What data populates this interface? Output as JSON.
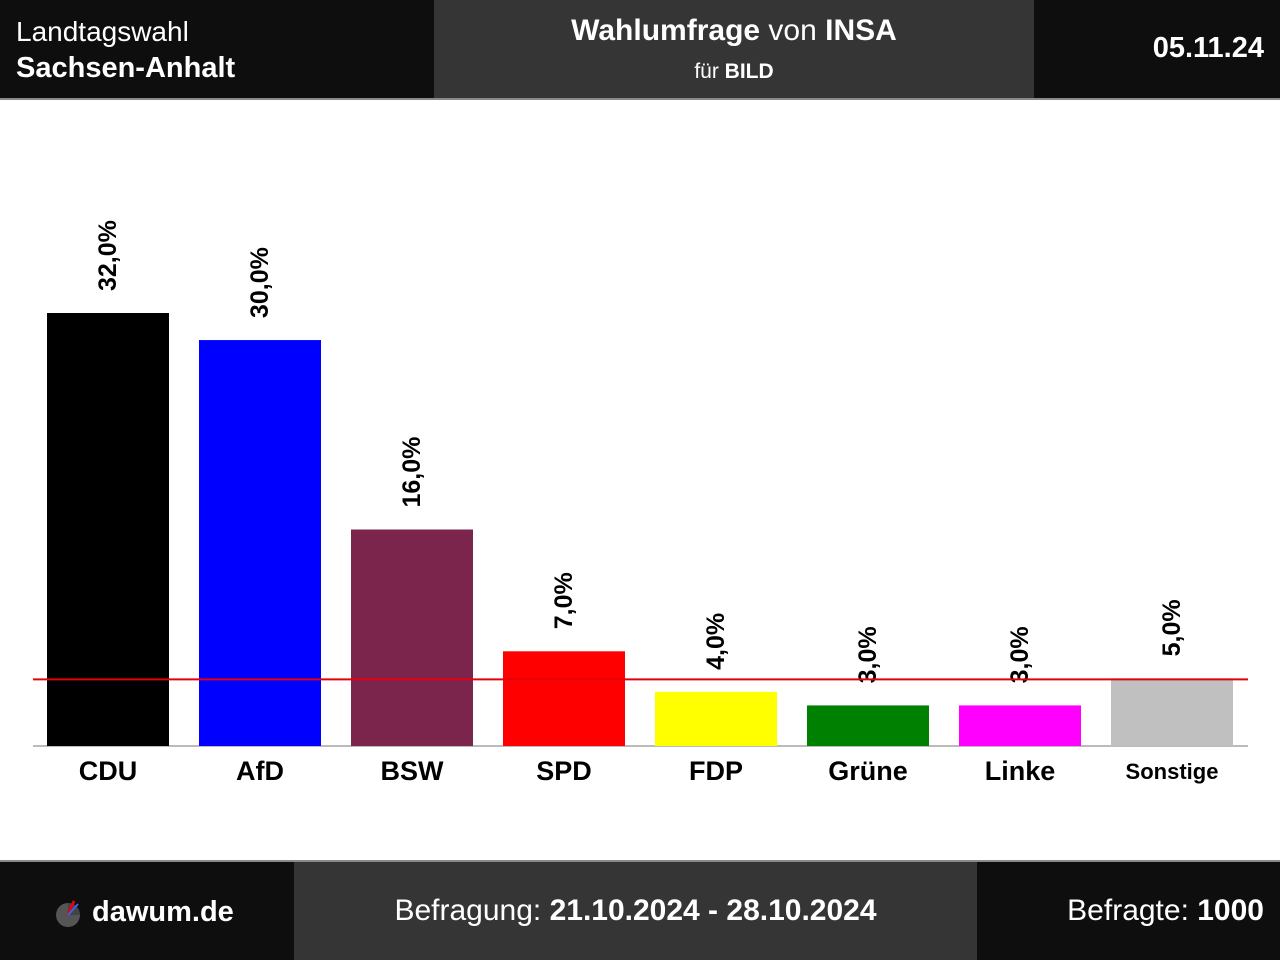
{
  "header": {
    "election_line1": "Landtagswahl",
    "election_line2": "Sachsen-Anhalt",
    "title_strong": "Wahlumfrage",
    "title_von": " von ",
    "title_institute": "INSA",
    "subtitle_fuer": "für ",
    "subtitle_client": "BILD",
    "date": "05.11.24"
  },
  "footer": {
    "brand": "dawum.de",
    "survey_label": "Befragung: ",
    "survey_period": "21.10.2024 - 28.10.2024",
    "respondents_label": "Befragte: ",
    "respondents_value": "1000"
  },
  "chart_data": {
    "type": "bar",
    "categories": [
      "CDU",
      "AfD",
      "BSW",
      "SPD",
      "FDP",
      "Grüne",
      "Linke",
      "Sonstige"
    ],
    "values": [
      32.0,
      30.0,
      16.0,
      7.0,
      4.0,
      3.0,
      3.0,
      5.0
    ],
    "value_labels": [
      "32,0%",
      "30,0%",
      "16,0%",
      "7,0%",
      "4,0%",
      "3,0%",
      "3,0%",
      "5,0%"
    ],
    "colors": [
      "#000000",
      "#0000ff",
      "#7b254c",
      "#ff0000",
      "#ffff00",
      "#008000",
      "#ff00ff",
      "#c0c0c0"
    ],
    "threshold": 5.0,
    "threshold_color": "#e3000f",
    "ylim": [
      0,
      32
    ]
  }
}
